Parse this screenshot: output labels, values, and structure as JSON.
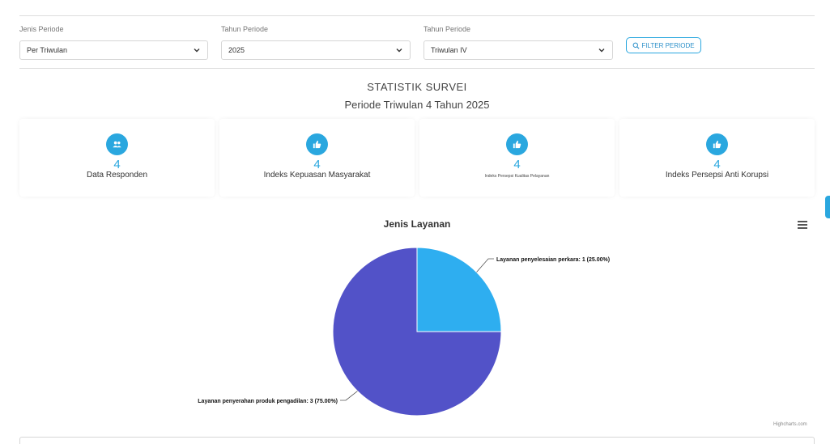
{
  "filters": {
    "jenis_periode": {
      "label": "Jenis Periode",
      "value": "Per Triwulan"
    },
    "tahun_periode": {
      "label": "Tahun Periode",
      "value": "2025"
    },
    "triwulan": {
      "label": "Tahun Periode",
      "value": "Triwulan IV"
    },
    "button_label": "FILTER PERIODE"
  },
  "header": {
    "title": "STATISTIK SURVEI",
    "subtitle": "Periode Triwulan 4 Tahun 2025"
  },
  "cards": [
    {
      "value": "4",
      "label": "Data Responden",
      "icon": "users-icon"
    },
    {
      "value": "4",
      "label": "Indeks Kepuasan Masyarakat",
      "icon": "thumbs-up-icon"
    },
    {
      "value": "4",
      "label": "Indeks Persepsi Kualitas Pelayanan",
      "icon": "thumbs-up-icon"
    },
    {
      "value": "4",
      "label": "Indeks Persepsi Anti Korupsi",
      "icon": "thumbs-up-icon"
    }
  ],
  "chart_data": {
    "type": "pie",
    "title": "Jenis Layanan",
    "series": [
      {
        "name": "Layanan penyelesaian perkara",
        "value": 1,
        "label": "Layanan penyelesaian perkara: 1 (25.00%)",
        "color": "#2eaef0"
      },
      {
        "name": "Layanan penyerahan produk pengadilan",
        "value": 3,
        "label": "Layanan penyerahan produk pengadilan: 3 (75.00%)",
        "color": "#5252c8"
      }
    ],
    "credit": "Highcharts.com"
  },
  "colors": {
    "accent": "#2aa7df"
  }
}
